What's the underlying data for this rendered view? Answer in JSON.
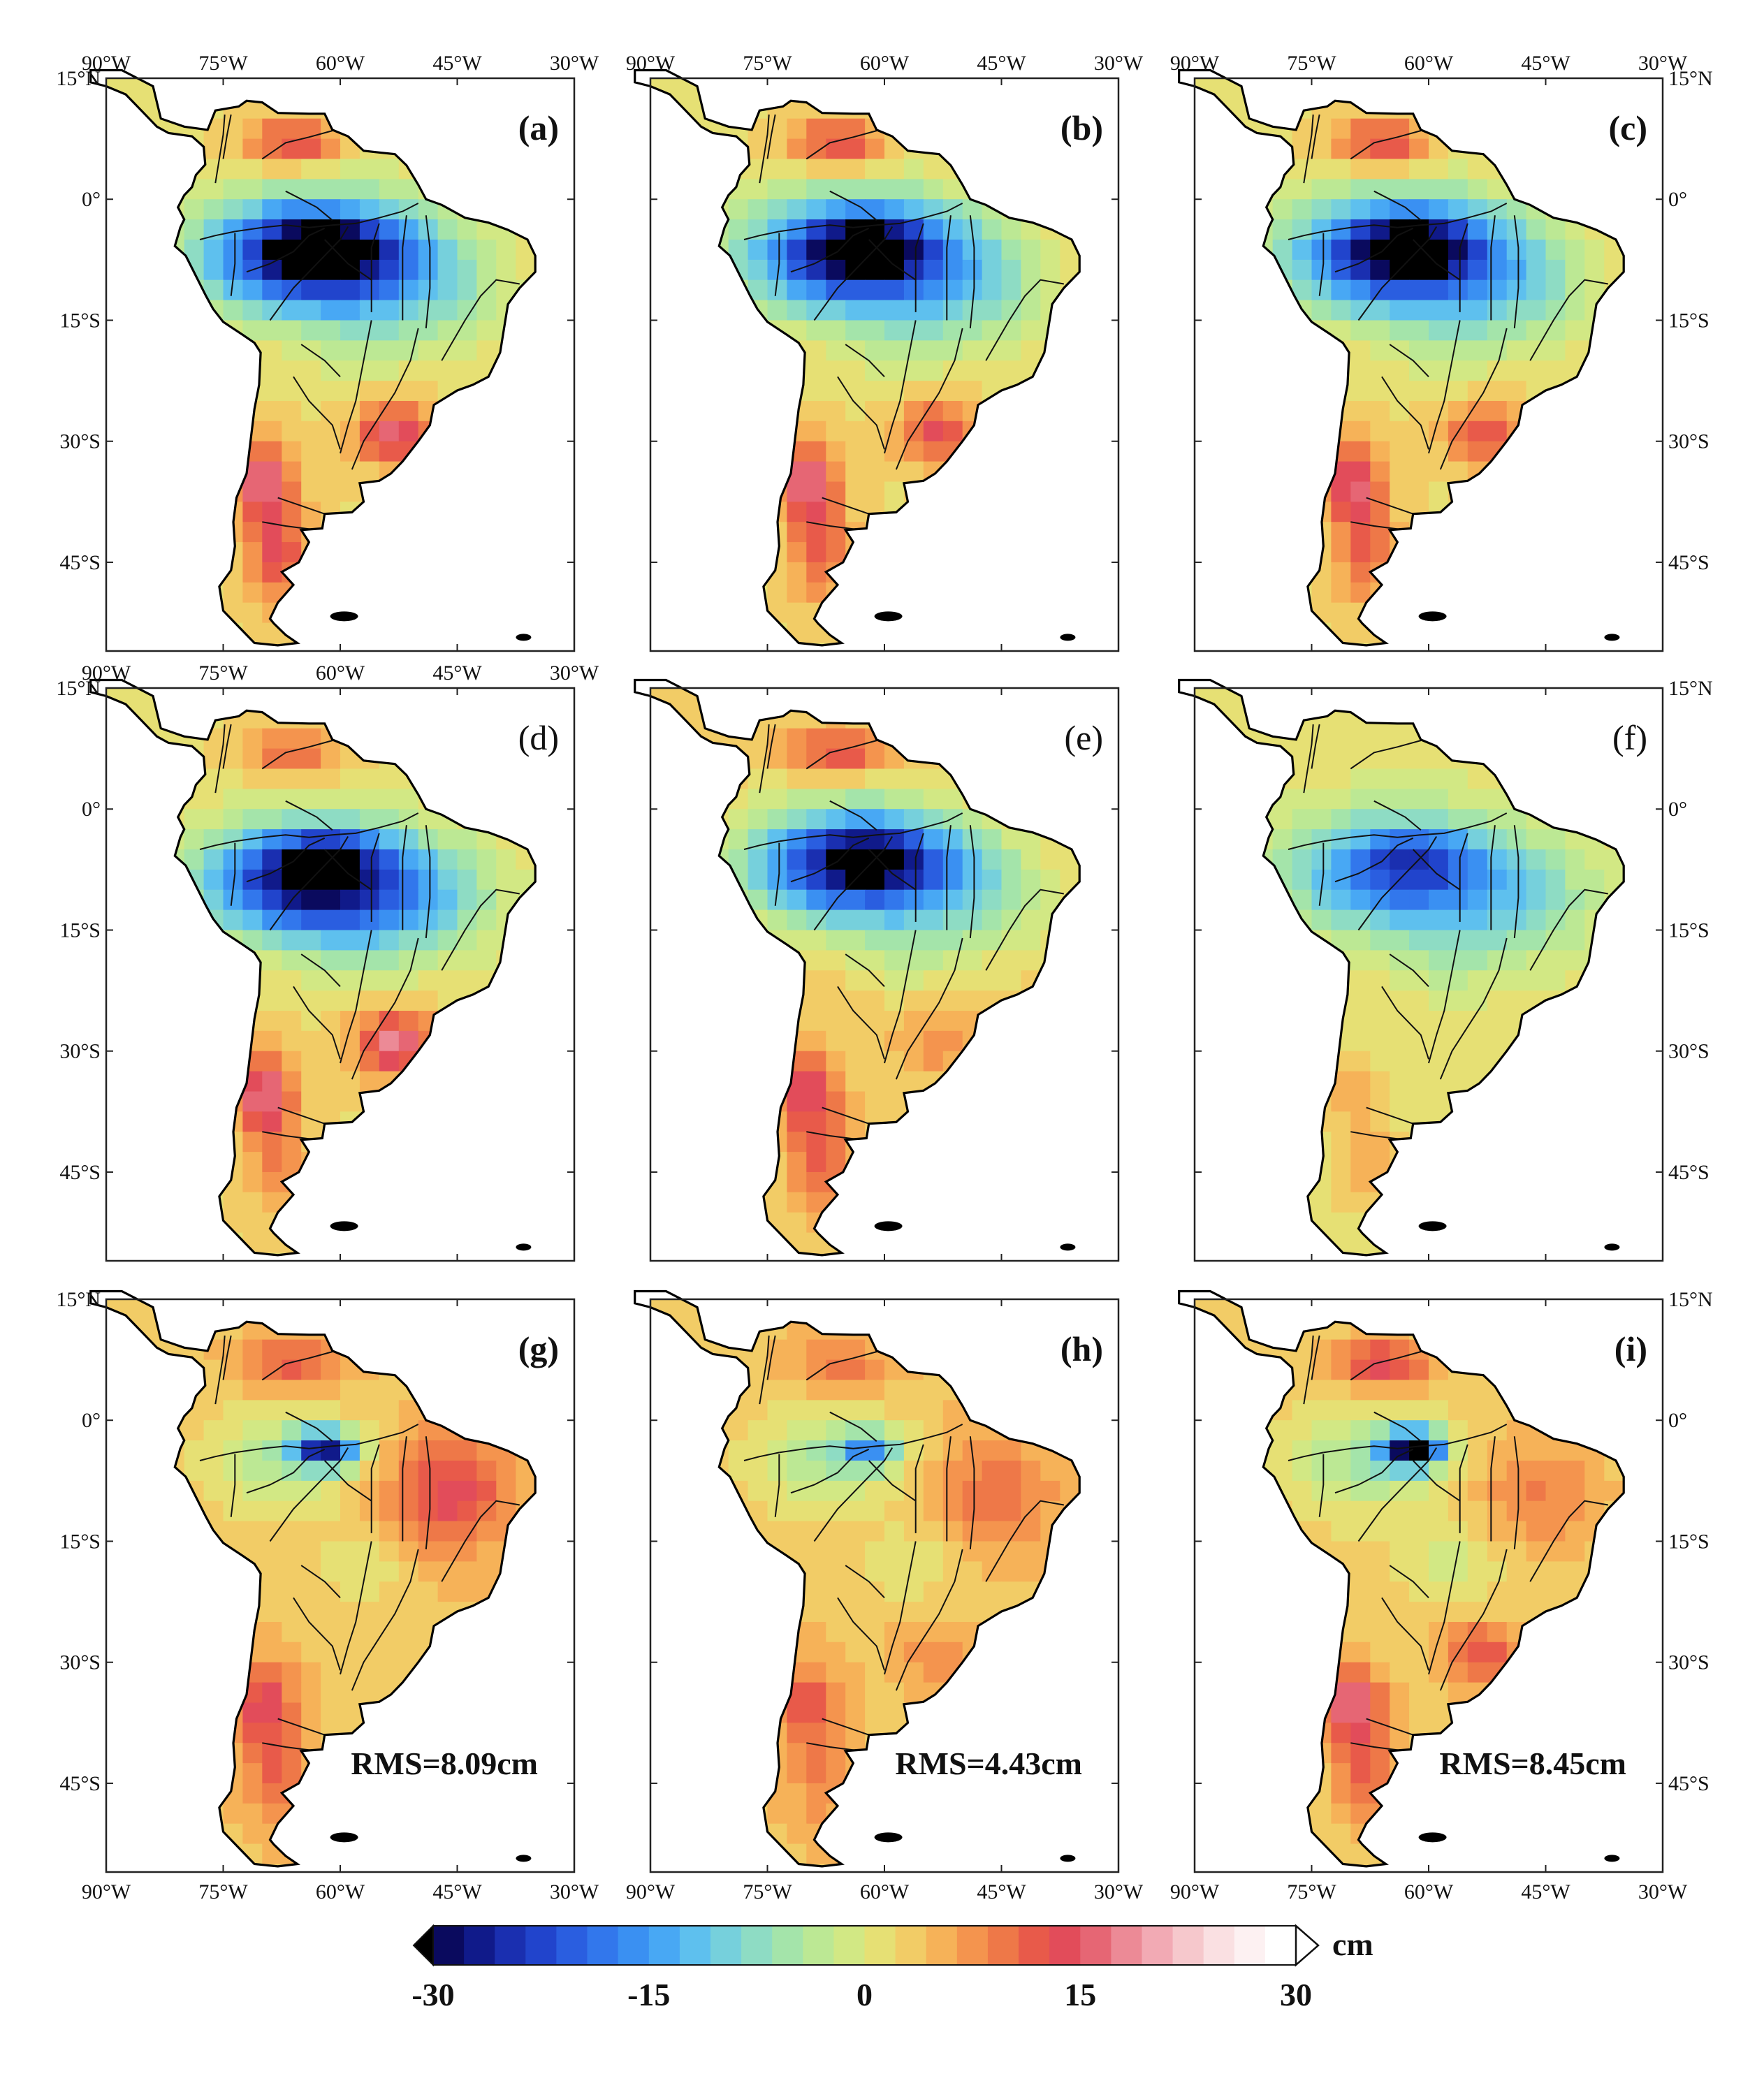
{
  "figure": {
    "panels": [
      {
        "label": "(a)",
        "bold": true,
        "rms": "",
        "pattern": "a"
      },
      {
        "label": "(b)",
        "bold": true,
        "rms": "",
        "pattern": "b"
      },
      {
        "label": "(c)",
        "bold": true,
        "rms": "",
        "pattern": "c"
      },
      {
        "label": "(d)",
        "bold": false,
        "rms": "",
        "pattern": "d"
      },
      {
        "label": "(e)",
        "bold": false,
        "rms": "",
        "pattern": "e"
      },
      {
        "label": "(f)",
        "bold": false,
        "rms": "",
        "pattern": "f"
      },
      {
        "label": "(g)",
        "bold": true,
        "rms": "RMS=8.09cm",
        "pattern": "g"
      },
      {
        "label": "(h)",
        "bold": true,
        "rms": "RMS=4.43cm",
        "pattern": "h"
      },
      {
        "label": "(i)",
        "bold": true,
        "rms": "RMS=8.45cm",
        "pattern": "i"
      }
    ],
    "lon_ticks": [
      "90°W",
      "75°W",
      "60°W",
      "45°W",
      "30°W"
    ],
    "lat_ticks": [
      "15°N",
      "0°",
      "15°S",
      "30°S",
      "45°S"
    ],
    "colorbar": {
      "unit": "cm",
      "tick_labels": [
        "-30",
        "-15",
        "0",
        "15",
        "30"
      ],
      "min": -30,
      "max": 30,
      "colors": [
        "#0a0a5e",
        "#101a8a",
        "#1a2fb0",
        "#2144cc",
        "#2a5ee0",
        "#3277ec",
        "#3a90f2",
        "#48a8f4",
        "#5ec0ee",
        "#76d0dc",
        "#8edcc4",
        "#a4e4aa",
        "#bce894",
        "#d2e884",
        "#e6e074",
        "#f2cc66",
        "#f6b258",
        "#f4944e",
        "#ee7848",
        "#e85a4a",
        "#e24c5a",
        "#e66674",
        "#ec8a96",
        "#f2aab4",
        "#f6c8cc",
        "#fae0e2",
        "#fdf1f2",
        "#ffffff"
      ]
    }
  }
}
